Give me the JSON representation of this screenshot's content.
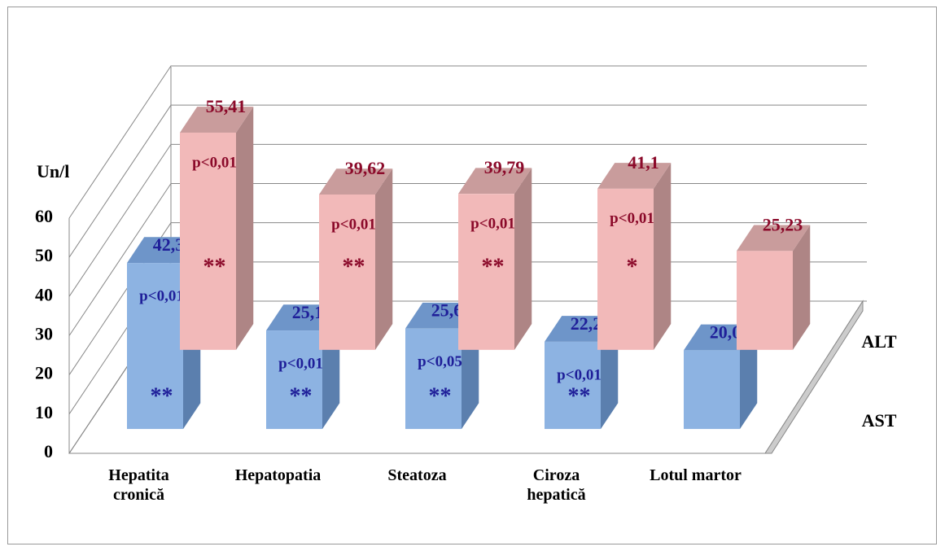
{
  "chart_data": {
    "type": "bar3d",
    "y_label": "Un/l",
    "categories": [
      "Hepatita\ncronică",
      "Hepatopatia",
      "Steatoza",
      "Ciroza\nhepatică",
      "Lotul martor"
    ],
    "ylim": [
      0,
      60
    ],
    "yticks": [
      0,
      10,
      20,
      30,
      40,
      50,
      60
    ],
    "series": [
      {
        "name": "AST",
        "color": "#8db3e2",
        "side_color": "#5b7fae",
        "top_color": "#6e95c9",
        "label_color": "#1f1f99",
        "values": [
          42.35,
          25.12,
          25.62,
          22.25,
          20.08
        ],
        "value_labels": [
          "42,35",
          "25,12",
          "25,62",
          "22,25",
          "20,08"
        ],
        "p_labels": [
          "p<0,01",
          "p<0,01",
          "p<0,05",
          "p<0,01",
          null
        ],
        "stars": [
          "**",
          "**",
          "**",
          "**",
          null
        ]
      },
      {
        "name": "ALT",
        "color": "#f2b9b9",
        "side_color": "#ae8585",
        "top_color": "#c99c9c",
        "label_color": "#8b0a2a",
        "values": [
          55.41,
          39.62,
          39.79,
          41.1,
          25.23
        ],
        "value_labels": [
          "55,41",
          "39,62",
          "39,79",
          "41,1",
          "25,23"
        ],
        "p_labels": [
          "p<0,01",
          "p<0,01",
          "p<0,01",
          "p<0,01",
          null
        ],
        "stars": [
          "**",
          "**",
          "**",
          "*",
          null
        ]
      }
    ]
  }
}
